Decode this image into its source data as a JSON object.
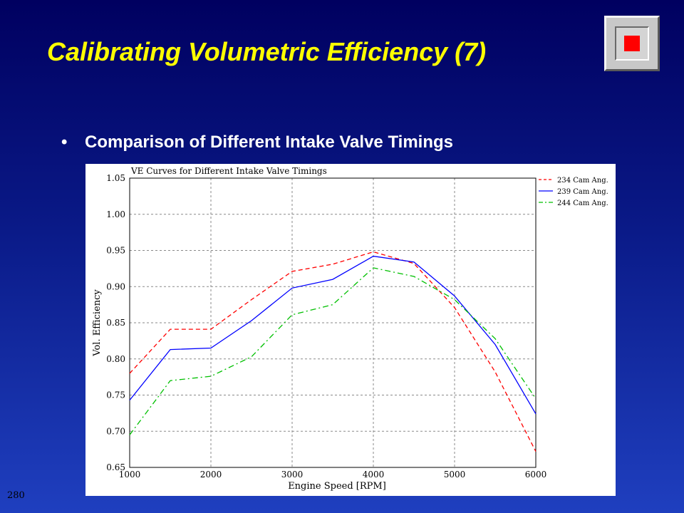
{
  "slide": {
    "title": "Calibrating Volumetric Efficiency (7)",
    "bullet": "•",
    "bullet_text": "Comparison of Different Intake Valve Timings",
    "page_number": "280"
  },
  "colors": {
    "title": "#ffff00",
    "series_234": "#ff0000",
    "series_239": "#0000ff",
    "series_244": "#00c000"
  },
  "chart_data": {
    "type": "line",
    "title": "VE Curves for Different Intake Valve Timings",
    "xlabel": "Engine Speed [RPM]",
    "ylabel": "Vol. Efficiency",
    "xlim": [
      1000,
      6000
    ],
    "ylim": [
      0.65,
      1.05
    ],
    "x_ticks": [
      "1000",
      "2000",
      "3000",
      "4000",
      "5000",
      "6000"
    ],
    "y_ticks": [
      "0.65",
      "0.70",
      "0.75",
      "0.80",
      "0.85",
      "0.90",
      "0.95",
      "1.00",
      "1.05"
    ],
    "grid": true,
    "legend_position": "top-right",
    "x": [
      1000,
      1500,
      2000,
      2500,
      3000,
      3500,
      4000,
      4500,
      5000,
      5500,
      6000
    ],
    "series": [
      {
        "name": "234 Cam Ang.",
        "style": "dashed",
        "color": "#ff0000",
        "values": [
          0.78,
          0.841,
          0.841,
          0.882,
          0.921,
          0.931,
          0.948,
          0.932,
          0.871,
          0.782,
          0.672
        ]
      },
      {
        "name": "239 Cam Ang.",
        "style": "solid",
        "color": "#0000ff",
        "values": [
          0.743,
          0.813,
          0.815,
          0.853,
          0.898,
          0.91,
          0.942,
          0.934,
          0.887,
          0.82,
          0.724
        ]
      },
      {
        "name": "244 Cam Ang.",
        "style": "dashdot",
        "color": "#00c000",
        "values": [
          0.695,
          0.77,
          0.776,
          0.803,
          0.861,
          0.875,
          0.926,
          0.914,
          0.882,
          0.828,
          0.745
        ]
      }
    ]
  }
}
